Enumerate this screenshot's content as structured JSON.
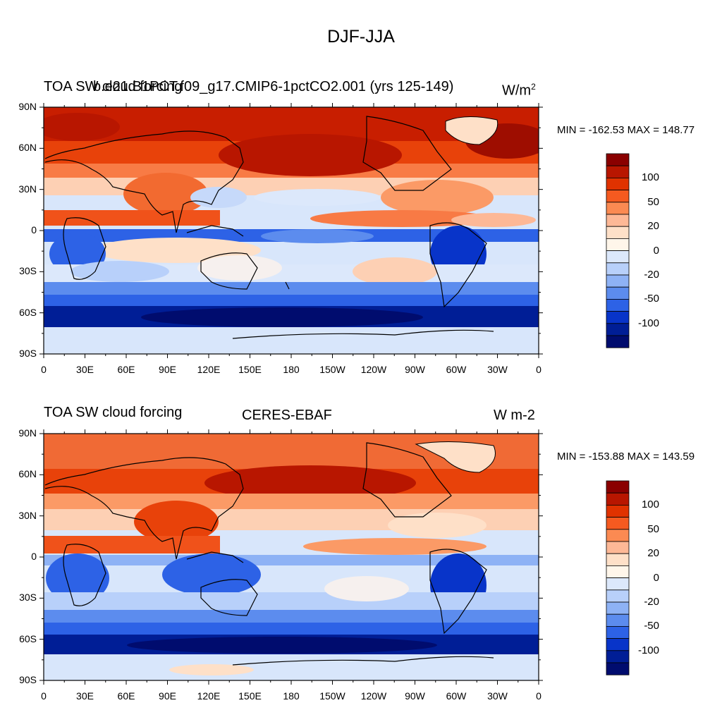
{
  "title": "DJF-JJA",
  "panels": [
    {
      "left_title": "TOA SW cloud forcing",
      "center_title": "b.e21.B1PCT.f09_g17.CMIP6-1pctCO2.001 (yrs 125-149)",
      "units": "W/m",
      "units_sup": "2",
      "stats": "MIN = -162.53 MAX = 148.77"
    },
    {
      "left_title": "TOA SW cloud forcing",
      "center_title": "CERES-EBAF",
      "units": "W m-2",
      "units_sup": "",
      "stats": "MIN = -153.88 MAX = 143.59"
    }
  ],
  "lat_ticks": [
    "90N",
    "60N",
    "30N",
    "0",
    "30S",
    "60S",
    "90S"
  ],
  "lon_ticks": [
    "0",
    "30E",
    "60E",
    "90E",
    "120E",
    "150E",
    "180",
    "150W",
    "120W",
    "90W",
    "60W",
    "30W",
    "0"
  ],
  "colorbar": {
    "labels": [
      "100",
      "50",
      "20",
      "0",
      "-20",
      "-50",
      "-100"
    ],
    "colors": [
      "#8a0000",
      "#b81600",
      "#e03200",
      "#f55a20",
      "#fb8a52",
      "#fdb896",
      "#fee0c8",
      "#fff6ea",
      "#dce8fb",
      "#b8d0fa",
      "#8eb2f5",
      "#5c8cee",
      "#2d62e6",
      "#0834c9",
      "#001e96",
      "#000c6e"
    ]
  }
}
